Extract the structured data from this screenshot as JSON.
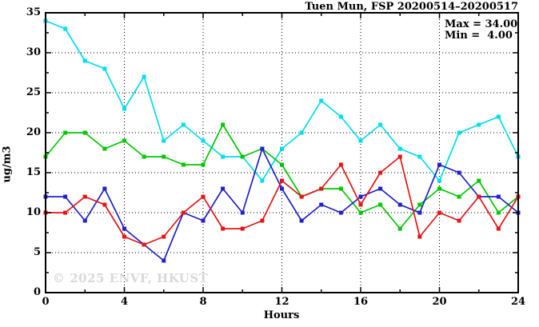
{
  "title": "Tuen Mun, FSP 20200514–20200517",
  "annotation": {
    "max_label": "Max = 34.00",
    "min_label": "Min =  4.00"
  },
  "watermark": "© 2025 ENVF, HKUST",
  "chart_data": {
    "type": "line",
    "title": "Tuen Mun, FSP 20200514–20200517",
    "xlabel": "Hours",
    "ylabel": "ug/m3",
    "xlim": [
      0,
      24
    ],
    "ylim": [
      0,
      35
    ],
    "grid": true,
    "legend_position": "none",
    "max_value": 34.0,
    "min_value": 4.0,
    "x_major_ticks": [
      0,
      4,
      8,
      12,
      16,
      20,
      24
    ],
    "x_tick_labels": [
      "0",
      "4",
      "8",
      "12",
      "16",
      "20",
      "24"
    ],
    "x_minor_step": 2,
    "y_major_ticks": [
      0,
      5,
      10,
      15,
      20,
      25,
      30,
      35
    ],
    "y_tick_labels": [
      "0",
      "5",
      "10",
      "15",
      "20",
      "25",
      "30",
      "35"
    ],
    "y_minor_step": 2.5,
    "x": [
      0,
      1,
      2,
      3,
      4,
      5,
      6,
      7,
      8,
      9,
      10,
      11,
      12,
      13,
      14,
      15,
      16,
      17,
      18,
      19,
      20,
      21,
      22,
      23,
      24
    ],
    "series": [
      {
        "name": "series-cyan",
        "color": "#00DDEE",
        "values": [
          34,
          33,
          29,
          28,
          23,
          27,
          19,
          21,
          19,
          17,
          17,
          14,
          18,
          20,
          24,
          22,
          19,
          21,
          18,
          17,
          14,
          20,
          21,
          22,
          17
        ]
      },
      {
        "name": "series-green",
        "color": "#00C800",
        "values": [
          17,
          20,
          20,
          18,
          19,
          17,
          17,
          16,
          16,
          21,
          17,
          18,
          16,
          12,
          13,
          13,
          10,
          11,
          8,
          11,
          13,
          12,
          14,
          10,
          12
        ]
      },
      {
        "name": "series-blue",
        "color": "#2020CC",
        "values": [
          12,
          12,
          9,
          13,
          8,
          6,
          4,
          10,
          9,
          13,
          10,
          18,
          13,
          9,
          11,
          10,
          12,
          13,
          11,
          10,
          16,
          15,
          12,
          12,
          10
        ]
      },
      {
        "name": "series-red",
        "color": "#E61414",
        "values": [
          10,
          10,
          12,
          11,
          7,
          6,
          7,
          10,
          12,
          8,
          8,
          9,
          14,
          12,
          13,
          16,
          11,
          15,
          17,
          7,
          10,
          9,
          12,
          8,
          12
        ]
      }
    ]
  }
}
